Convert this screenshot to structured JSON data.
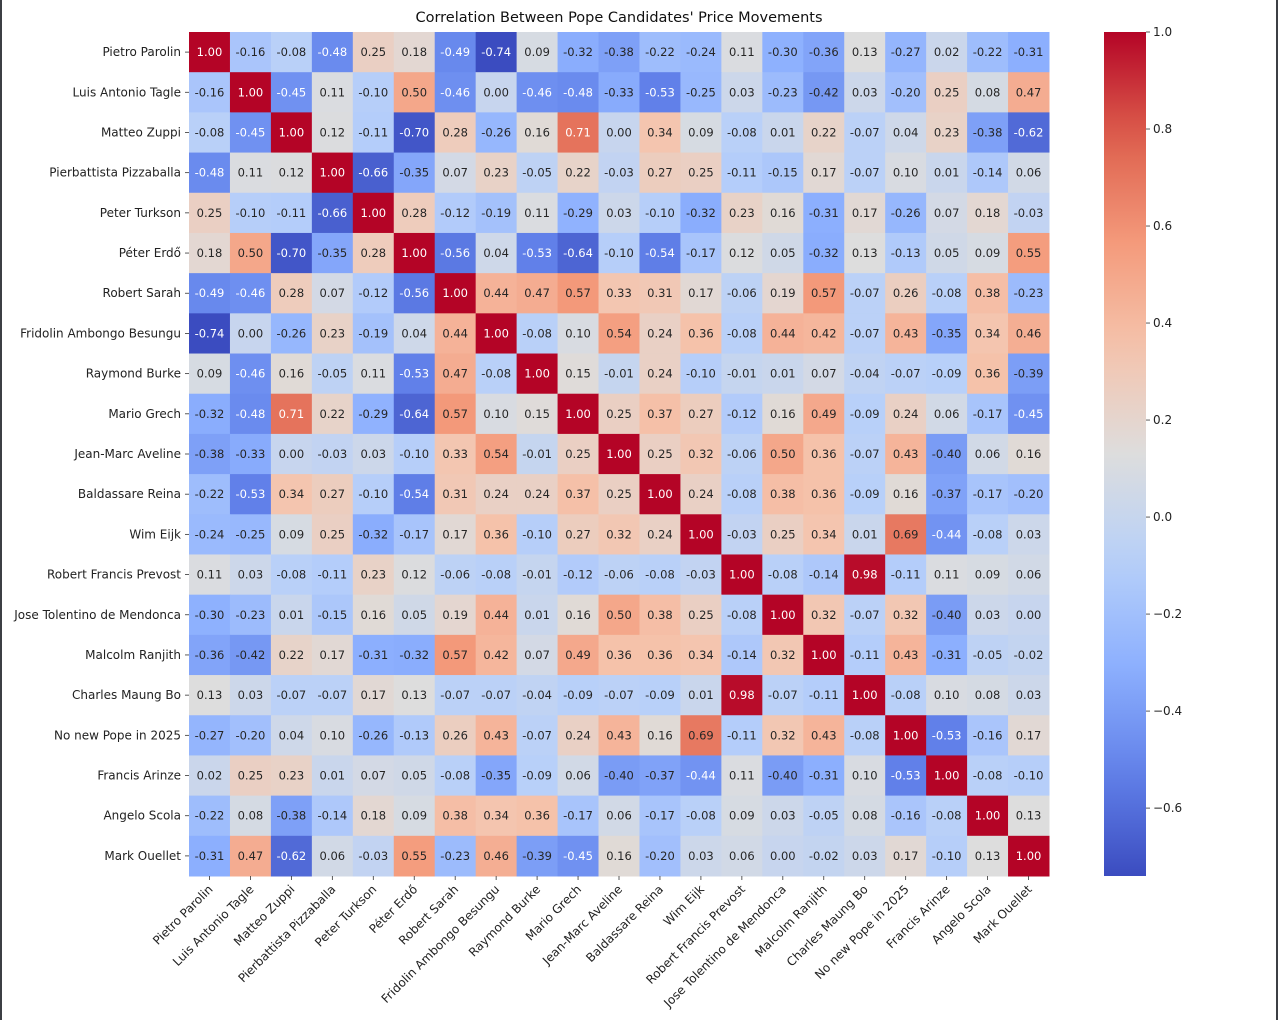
{
  "chart_data": {
    "type": "heatmap",
    "title": "Correlation Between Pope Candidates' Price Movements",
    "labels": [
      "Pietro Parolin",
      "Luis Antonio Tagle",
      "Matteo Zuppi",
      "Pierbattista Pizzaballa",
      "Peter Turkson",
      "Péter Erdő",
      "Robert Sarah",
      "Fridolin Ambongo Besungu",
      "Raymond Burke",
      "Mario Grech",
      "Jean-Marc Aveline",
      "Baldassare Reina",
      "Wim Eijk",
      "Robert Francis Prevost",
      "Jose Tolentino de Mendonca",
      "Malcolm Ranjith",
      "Charles Maung Bo",
      "No new Pope in 2025",
      "Francis Arinze",
      "Angelo Scola",
      "Mark Ouellet"
    ],
    "matrix": [
      [
        1.0,
        -0.16,
        -0.08,
        -0.48,
        0.25,
        0.18,
        -0.49,
        -0.74,
        0.09,
        -0.32,
        -0.38,
        -0.22,
        -0.24,
        0.11,
        -0.3,
        -0.36,
        0.13,
        -0.27,
        0.02,
        -0.22,
        -0.31
      ],
      [
        -0.16,
        1.0,
        -0.45,
        0.11,
        -0.1,
        0.5,
        -0.46,
        0.0,
        -0.46,
        -0.48,
        -0.33,
        -0.53,
        -0.25,
        0.03,
        -0.23,
        -0.42,
        0.03,
        -0.2,
        0.25,
        0.08,
        0.47
      ],
      [
        -0.08,
        -0.45,
        1.0,
        0.12,
        -0.11,
        -0.7,
        0.28,
        -0.26,
        0.16,
        0.71,
        0.0,
        0.34,
        0.09,
        -0.08,
        0.01,
        0.22,
        -0.07,
        0.04,
        0.23,
        -0.38,
        -0.62
      ],
      [
        -0.48,
        0.11,
        0.12,
        1.0,
        -0.66,
        -0.35,
        0.07,
        0.23,
        -0.05,
        0.22,
        -0.03,
        0.27,
        0.25,
        -0.11,
        -0.15,
        0.17,
        -0.07,
        0.1,
        0.01,
        -0.14,
        0.06
      ],
      [
        0.25,
        -0.1,
        -0.11,
        -0.66,
        1.0,
        0.28,
        -0.12,
        -0.19,
        0.11,
        -0.29,
        0.03,
        -0.1,
        -0.32,
        0.23,
        0.16,
        -0.31,
        0.17,
        -0.26,
        0.07,
        0.18,
        -0.03
      ],
      [
        0.18,
        0.5,
        -0.7,
        -0.35,
        0.28,
        1.0,
        -0.56,
        0.04,
        -0.53,
        -0.64,
        -0.1,
        -0.54,
        -0.17,
        0.12,
        0.05,
        -0.32,
        0.13,
        -0.13,
        0.05,
        0.09,
        0.55
      ],
      [
        -0.49,
        -0.46,
        0.28,
        0.07,
        -0.12,
        -0.56,
        1.0,
        0.44,
        0.47,
        0.57,
        0.33,
        0.31,
        0.17,
        -0.06,
        0.19,
        0.57,
        -0.07,
        0.26,
        -0.08,
        0.38,
        -0.23
      ],
      [
        -0.74,
        0.0,
        -0.26,
        0.23,
        -0.19,
        0.04,
        0.44,
        1.0,
        -0.08,
        0.1,
        0.54,
        0.24,
        0.36,
        -0.08,
        0.44,
        0.42,
        -0.07,
        0.43,
        -0.35,
        0.34,
        0.46
      ],
      [
        0.09,
        -0.46,
        0.16,
        -0.05,
        0.11,
        -0.53,
        0.47,
        -0.08,
        1.0,
        0.15,
        -0.01,
        0.24,
        -0.1,
        -0.01,
        0.01,
        0.07,
        -0.04,
        -0.07,
        -0.09,
        0.36,
        -0.39
      ],
      [
        -0.32,
        -0.48,
        0.71,
        0.22,
        -0.29,
        -0.64,
        0.57,
        0.1,
        0.15,
        1.0,
        0.25,
        0.37,
        0.27,
        -0.12,
        0.16,
        0.49,
        -0.09,
        0.24,
        0.06,
        -0.17,
        -0.45
      ],
      [
        -0.38,
        -0.33,
        0.0,
        -0.03,
        0.03,
        -0.1,
        0.33,
        0.54,
        -0.01,
        0.25,
        1.0,
        0.25,
        0.32,
        -0.06,
        0.5,
        0.36,
        -0.07,
        0.43,
        -0.4,
        0.06,
        0.16
      ],
      [
        -0.22,
        -0.53,
        0.34,
        0.27,
        -0.1,
        -0.54,
        0.31,
        0.24,
        0.24,
        0.37,
        0.25,
        1.0,
        0.24,
        -0.08,
        0.38,
        0.36,
        -0.09,
        0.16,
        -0.37,
        -0.17,
        -0.2
      ],
      [
        -0.24,
        -0.25,
        0.09,
        0.25,
        -0.32,
        -0.17,
        0.17,
        0.36,
        -0.1,
        0.27,
        0.32,
        0.24,
        1.0,
        -0.03,
        0.25,
        0.34,
        0.01,
        0.69,
        -0.44,
        -0.08,
        0.03
      ],
      [
        0.11,
        0.03,
        -0.08,
        -0.11,
        0.23,
        0.12,
        -0.06,
        -0.08,
        -0.01,
        -0.12,
        -0.06,
        -0.08,
        -0.03,
        1.0,
        -0.08,
        -0.14,
        0.98,
        -0.11,
        0.11,
        0.09,
        0.06
      ],
      [
        -0.3,
        -0.23,
        0.01,
        -0.15,
        0.16,
        0.05,
        0.19,
        0.44,
        0.01,
        0.16,
        0.5,
        0.38,
        0.25,
        -0.08,
        1.0,
        0.32,
        -0.07,
        0.32,
        -0.4,
        0.03,
        0.0
      ],
      [
        -0.36,
        -0.42,
        0.22,
        0.17,
        -0.31,
        -0.32,
        0.57,
        0.42,
        0.07,
        0.49,
        0.36,
        0.36,
        0.34,
        -0.14,
        0.32,
        1.0,
        -0.11,
        0.43,
        -0.31,
        -0.05,
        -0.02
      ],
      [
        0.13,
        0.03,
        -0.07,
        -0.07,
        0.17,
        0.13,
        -0.07,
        -0.07,
        -0.04,
        -0.09,
        -0.07,
        -0.09,
        0.01,
        0.98,
        -0.07,
        -0.11,
        1.0,
        -0.08,
        0.1,
        0.08,
        0.03
      ],
      [
        -0.27,
        -0.2,
        0.04,
        0.1,
        -0.26,
        -0.13,
        0.26,
        0.43,
        -0.07,
        0.24,
        0.43,
        0.16,
        0.69,
        -0.11,
        0.32,
        0.43,
        -0.08,
        1.0,
        -0.53,
        -0.16,
        0.17
      ],
      [
        0.02,
        0.25,
        0.23,
        0.01,
        0.07,
        0.05,
        -0.08,
        -0.35,
        -0.09,
        0.06,
        -0.4,
        -0.37,
        -0.44,
        0.11,
        -0.4,
        -0.31,
        0.1,
        -0.53,
        1.0,
        -0.08,
        -0.1
      ],
      [
        -0.22,
        0.08,
        -0.38,
        -0.14,
        0.18,
        0.09,
        0.38,
        0.34,
        0.36,
        -0.17,
        0.06,
        -0.17,
        -0.08,
        0.09,
        0.03,
        -0.05,
        0.08,
        -0.16,
        -0.08,
        1.0,
        0.13
      ],
      [
        -0.31,
        0.47,
        -0.62,
        0.06,
        -0.03,
        0.55,
        -0.23,
        0.46,
        -0.39,
        -0.45,
        0.16,
        -0.2,
        0.03,
        0.06,
        0.0,
        -0.02,
        0.03,
        0.17,
        -0.1,
        0.13,
        1.0
      ]
    ],
    "colormap": "coolwarm",
    "vmin": -0.74,
    "vmax": 1.0,
    "colorbar_ticks": [
      -0.6,
      -0.4,
      -0.2,
      0.0,
      0.2,
      0.4,
      0.6,
      0.8,
      1.0
    ],
    "colorbar_tick_labels": [
      "−0.6",
      "−0.4",
      "−0.2",
      "0.0",
      "0.2",
      "0.4",
      "0.6",
      "0.8",
      "1.0"
    ],
    "annotation_format": "2 decimals"
  }
}
